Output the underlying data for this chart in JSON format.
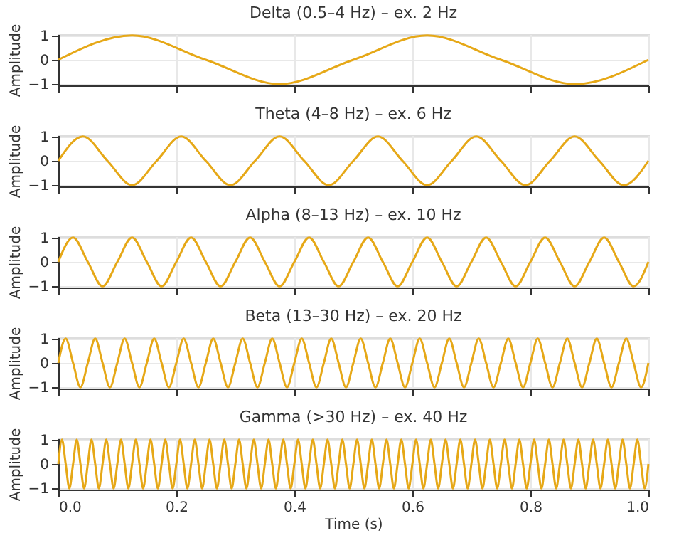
{
  "chart_data": [
    {
      "type": "line",
      "title": "Delta (0.5–4 Hz) – ex. 2 Hz",
      "ylabel": "Amplitude",
      "xlim": [
        0,
        1
      ],
      "ylim": [
        -1.05,
        1.05
      ],
      "xticks": [
        0,
        0.2,
        0.4,
        0.6,
        0.8,
        1.0
      ],
      "yticks": [
        -1,
        0,
        1
      ],
      "grid": true,
      "tick_labels": "y",
      "x": [
        0,
        0.125,
        0.25,
        0.375,
        0.5,
        0.625,
        0.75,
        0.875,
        1
      ],
      "series": [
        {
          "color": "#e6a817",
          "values": [
            0,
            1,
            0,
            -1,
            0,
            1,
            0,
            -1,
            0
          ]
        }
      ]
    },
    {
      "type": "line",
      "title": "Theta (4–8 Hz) – ex. 6 Hz",
      "ylabel": "Amplitude",
      "xlim": [
        0,
        1
      ],
      "ylim": [
        -1.05,
        1.05
      ],
      "xticks": [
        0,
        0.2,
        0.4,
        0.6,
        0.8,
        1.0
      ],
      "yticks": [
        -1,
        0,
        1
      ],
      "grid": true,
      "tick_labels": "y",
      "x": [
        0,
        0.0417,
        0.0833,
        0.125,
        0.1667,
        0.2083,
        0.25,
        0.2917,
        0.3333,
        0.375,
        0.4167,
        0.4583,
        0.5,
        0.5417,
        0.5833,
        0.625,
        0.6667,
        0.7083,
        0.75,
        0.7917,
        0.8333,
        0.875,
        0.9167,
        0.9583,
        1
      ],
      "series": [
        {
          "color": "#e6a817",
          "values": [
            0,
            1,
            0,
            -1,
            0,
            1,
            0,
            -1,
            0,
            1,
            0,
            -1,
            0,
            1,
            0,
            -1,
            0,
            1,
            0,
            -1,
            0,
            1,
            0,
            -1,
            0
          ]
        }
      ]
    },
    {
      "type": "line",
      "title": "Alpha (8–13 Hz) – ex. 10 Hz",
      "ylabel": "Amplitude",
      "xlim": [
        0,
        1
      ],
      "ylim": [
        -1.05,
        1.05
      ],
      "xticks": [
        0,
        0.2,
        0.4,
        0.6,
        0.8,
        1.0
      ],
      "yticks": [
        -1,
        0,
        1
      ],
      "grid": true,
      "tick_labels": "y",
      "x": [
        0,
        0.025,
        0.05,
        0.075,
        0.1,
        0.125,
        0.15,
        0.175,
        0.2,
        0.225,
        0.25,
        0.275,
        0.3,
        0.325,
        0.35,
        0.375,
        0.4,
        0.425,
        0.45,
        0.475,
        0.5,
        0.525,
        0.55,
        0.575,
        0.6,
        0.625,
        0.65,
        0.675,
        0.7,
        0.725,
        0.75,
        0.775,
        0.8,
        0.825,
        0.85,
        0.875,
        0.9,
        0.925,
        0.95,
        0.975,
        1
      ],
      "series": [
        {
          "color": "#e6a817",
          "values": [
            0,
            1,
            0,
            -1,
            0,
            1,
            0,
            -1,
            0,
            1,
            0,
            -1,
            0,
            1,
            0,
            -1,
            0,
            1,
            0,
            -1,
            0,
            1,
            0,
            -1,
            0,
            1,
            0,
            -1,
            0,
            1,
            0,
            -1,
            0,
            1,
            0,
            -1,
            0,
            1,
            0,
            -1,
            0
          ]
        }
      ]
    },
    {
      "type": "line",
      "title": "Beta (13–30 Hz) – ex. 20 Hz",
      "ylabel": "Amplitude",
      "xlim": [
        0,
        1
      ],
      "ylim": [
        -1.05,
        1.05
      ],
      "xticks": [
        0,
        0.2,
        0.4,
        0.6,
        0.8,
        1.0
      ],
      "yticks": [
        -1,
        0,
        1
      ],
      "grid": true,
      "tick_labels": "y",
      "x": [
        0,
        0.0125,
        0.025,
        0.0375,
        0.05,
        0.0625,
        0.075,
        0.0875,
        0.1,
        0.1125,
        0.125,
        0.1375,
        0.15,
        0.1625,
        0.175,
        0.1875,
        0.2,
        0.2125,
        0.225,
        0.2375,
        0.25,
        0.2625,
        0.275,
        0.2875,
        0.3,
        0.3125,
        0.325,
        0.3375,
        0.35,
        0.3625,
        0.375,
        0.3875,
        0.4,
        0.4125,
        0.425,
        0.4375,
        0.45,
        0.4625,
        0.475,
        0.4875,
        0.5,
        0.5125,
        0.525,
        0.5375,
        0.55,
        0.5625,
        0.575,
        0.5875,
        0.6,
        0.6125,
        0.625,
        0.6375,
        0.65,
        0.6625,
        0.675,
        0.6875,
        0.7,
        0.7125,
        0.725,
        0.7375,
        0.75,
        0.7625,
        0.775,
        0.7875,
        0.8,
        0.8125,
        0.825,
        0.8375,
        0.85,
        0.8625,
        0.875,
        0.8875,
        0.9,
        0.9125,
        0.925,
        0.9375,
        0.95,
        0.9625,
        0.975,
        0.9875,
        1
      ],
      "series": [
        {
          "color": "#e6a817",
          "values": [
            0,
            1,
            0,
            -1,
            0,
            1,
            0,
            -1,
            0,
            1,
            0,
            -1,
            0,
            1,
            0,
            -1,
            0,
            1,
            0,
            -1,
            0,
            1,
            0,
            -1,
            0,
            1,
            0,
            -1,
            0,
            1,
            0,
            -1,
            0,
            1,
            0,
            -1,
            0,
            1,
            0,
            -1,
            0,
            1,
            0,
            -1,
            0,
            1,
            0,
            -1,
            0,
            1,
            0,
            -1,
            0,
            1,
            0,
            -1,
            0,
            1,
            0,
            -1,
            0,
            1,
            0,
            -1,
            0,
            1,
            0,
            -1,
            0,
            1,
            0,
            -1,
            0,
            1,
            0,
            -1,
            0,
            1,
            0,
            -1,
            0
          ]
        }
      ]
    },
    {
      "type": "line",
      "title": "Gamma (>30 Hz) – ex. 40 Hz",
      "ylabel": "Amplitude",
      "xlabel": "Time (s)",
      "xlim": [
        0,
        1
      ],
      "ylim": [
        -1.05,
        1.05
      ],
      "xticks": [
        {
          "value": 0,
          "label": "0.0"
        },
        0.2,
        0.4,
        0.6,
        0.8,
        {
          "value": 1,
          "label": "1.0"
        }
      ],
      "yticks": [
        -1,
        0,
        1
      ],
      "grid": true,
      "x": [
        0,
        0.00625,
        0.0125,
        0.01875,
        0.025,
        0.03125,
        0.0375,
        0.04375,
        0.05,
        0.05625,
        0.0625,
        0.06875,
        0.075,
        0.08125,
        0.0875,
        0.09375,
        0.1,
        0.10625,
        0.1125,
        0.11875,
        0.125,
        0.13125,
        0.1375,
        0.14375,
        0.15,
        0.15625,
        0.1625,
        0.16875,
        0.175,
        0.18125,
        0.1875,
        0.19375,
        0.2,
        0.20625,
        0.2125,
        0.21875,
        0.225,
        0.23125,
        0.2375,
        0.24375,
        0.25,
        0.25625,
        0.2625,
        0.26875,
        0.275,
        0.28125,
        0.2875,
        0.29375,
        0.3,
        0.30625,
        0.3125,
        0.31875,
        0.325,
        0.33125,
        0.3375,
        0.34375,
        0.35,
        0.35625,
        0.3625,
        0.36875,
        0.375,
        0.38125,
        0.3875,
        0.39375,
        0.4,
        0.40625,
        0.4125,
        0.41875,
        0.425,
        0.43125,
        0.4375,
        0.44375,
        0.45,
        0.45625,
        0.4625,
        0.46875,
        0.475,
        0.48125,
        0.4875,
        0.49375,
        0.5,
        0.50625,
        0.5125,
        0.51875,
        0.525,
        0.53125,
        0.5375,
        0.54375,
        0.55,
        0.55625,
        0.5625,
        0.56875,
        0.575,
        0.58125,
        0.5875,
        0.59375,
        0.6,
        0.60625,
        0.6125,
        0.61875,
        0.625,
        0.63125,
        0.6375,
        0.64375,
        0.65,
        0.65625,
        0.6625,
        0.66875,
        0.675,
        0.68125,
        0.6875,
        0.69375,
        0.7,
        0.70625,
        0.7125,
        0.71875,
        0.725,
        0.73125,
        0.7375,
        0.74375,
        0.75,
        0.75625,
        0.7625,
        0.76875,
        0.775,
        0.78125,
        0.7875,
        0.79375,
        0.8,
        0.80625,
        0.8125,
        0.81875,
        0.825,
        0.83125,
        0.8375,
        0.84375,
        0.85,
        0.85625,
        0.8625,
        0.86875,
        0.875,
        0.88125,
        0.8875,
        0.89375,
        0.9,
        0.90625,
        0.9125,
        0.91875,
        0.925,
        0.93125,
        0.9375,
        0.94375,
        0.95,
        0.95625,
        0.9625,
        0.96875,
        0.975,
        0.98125,
        0.9875,
        0.99375,
        1
      ],
      "series": [
        {
          "color": "#e6a817",
          "values": [
            0,
            1,
            0,
            -1,
            0,
            1,
            0,
            -1,
            0,
            1,
            0,
            -1,
            0,
            1,
            0,
            -1,
            0,
            1,
            0,
            -1,
            0,
            1,
            0,
            -1,
            0,
            1,
            0,
            -1,
            0,
            1,
            0,
            -1,
            0,
            1,
            0,
            -1,
            0,
            1,
            0,
            -1,
            0,
            1,
            0,
            -1,
            0,
            1,
            0,
            -1,
            0,
            1,
            0,
            -1,
            0,
            1,
            0,
            -1,
            0,
            1,
            0,
            -1,
            0,
            1,
            0,
            -1,
            0,
            1,
            0,
            -1,
            0,
            1,
            0,
            -1,
            0,
            1,
            0,
            -1,
            0,
            1,
            0,
            -1,
            0,
            1,
            0,
            -1,
            0,
            1,
            0,
            -1,
            0,
            1,
            0,
            -1,
            0,
            1,
            0,
            -1,
            0,
            1,
            0,
            -1,
            0,
            1,
            0,
            -1,
            0,
            1,
            0,
            -1,
            0,
            1,
            0,
            -1,
            0,
            1,
            0,
            -1,
            0,
            1,
            0,
            -1,
            0,
            1,
            0,
            -1,
            0,
            1,
            0,
            -1,
            0,
            1,
            0,
            -1,
            0,
            1,
            0,
            -1,
            0,
            1,
            0,
            -1,
            0,
            1,
            0,
            -1,
            0,
            1,
            0,
            -1,
            0,
            1,
            0,
            -1,
            0,
            1,
            0,
            -1,
            0,
            1,
            0,
            -1,
            0
          ]
        }
      ]
    }
  ]
}
